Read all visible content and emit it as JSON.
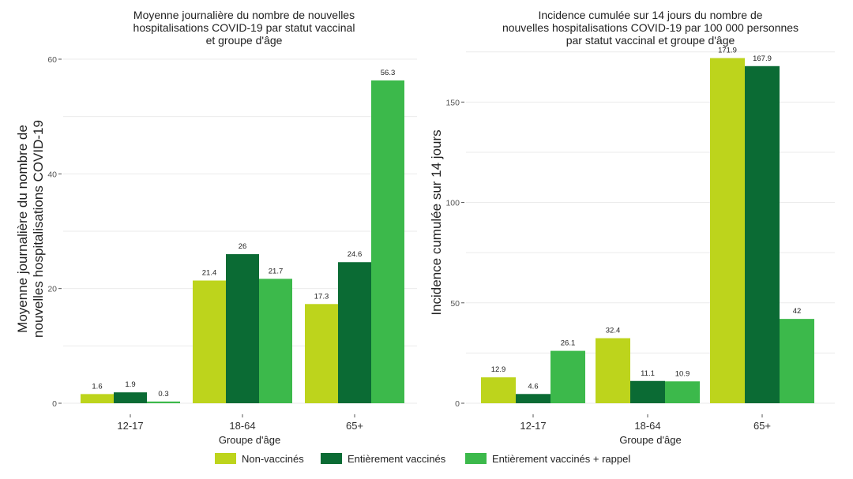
{
  "chart_data": [
    {
      "type": "bar",
      "title": [
        "Moyenne journalière du nombre de nouvelles",
        "hospitalisations COVID-19 par statut vaccinal",
        "et groupe d'âge"
      ],
      "ylabel": [
        "Moyenne journalière du nombre de",
        "nouvelles hospitalisations COVID-19"
      ],
      "xlabel": "Groupe d'âge",
      "categories": [
        "12-17",
        "18-64",
        "65+"
      ],
      "ylim": [
        0,
        60
      ],
      "yticks": [
        0,
        20,
        40,
        60
      ],
      "series": [
        {
          "name": "Non-vaccinés",
          "values": [
            1.6,
            21.4,
            17.3
          ],
          "labels": [
            "1.6",
            "21.4",
            "17.3"
          ]
        },
        {
          "name": "Entièrement vaccinés",
          "values": [
            1.9,
            26,
            24.6
          ],
          "labels": [
            "1.9",
            "26",
            "24.6"
          ]
        },
        {
          "name": "Entièrement vaccinés + rappel",
          "values": [
            0.3,
            21.7,
            56.3
          ],
          "labels": [
            "0.3",
            "21.7",
            "56.3"
          ]
        }
      ]
    },
    {
      "type": "bar",
      "title": [
        "Incidence cumulée sur 14 jours du nombre de",
        "nouvelles hospitalisations COVID-19 par 100 000 personnes",
        "par statut vaccinal et groupe d'âge"
      ],
      "ylabel": [
        "Incidence cumulée sur 14 jours"
      ],
      "xlabel": "Groupe d'âge",
      "categories": [
        "12-17",
        "18-64",
        "65+"
      ],
      "ylim": [
        0,
        180
      ],
      "yticks": [
        0,
        50,
        100,
        150
      ],
      "series": [
        {
          "name": "Non-vaccinés",
          "values": [
            12.9,
            32.4,
            171.9
          ],
          "labels": [
            "12.9",
            "32.4",
            "171.9"
          ]
        },
        {
          "name": "Entièrement vaccinés",
          "values": [
            4.6,
            11.1,
            167.9
          ],
          "labels": [
            "4.6",
            "11.1",
            "167.9"
          ]
        },
        {
          "name": "Entièrement vaccinés + rappel",
          "values": [
            26.1,
            10.9,
            42
          ],
          "labels": [
            "26.1",
            "10.9",
            "42"
          ]
        }
      ]
    }
  ],
  "legend": {
    "items": [
      {
        "label": "Non-vaccinés",
        "color": "#bdd41c"
      },
      {
        "label": "Entièrement vaccinés",
        "color": "#0b6b34"
      },
      {
        "label": "Entièrement vaccinés + rappel",
        "color": "#3cb94b"
      }
    ]
  },
  "colors": [
    "#bdd41c",
    "#0b6b34",
    "#3cb94b"
  ]
}
